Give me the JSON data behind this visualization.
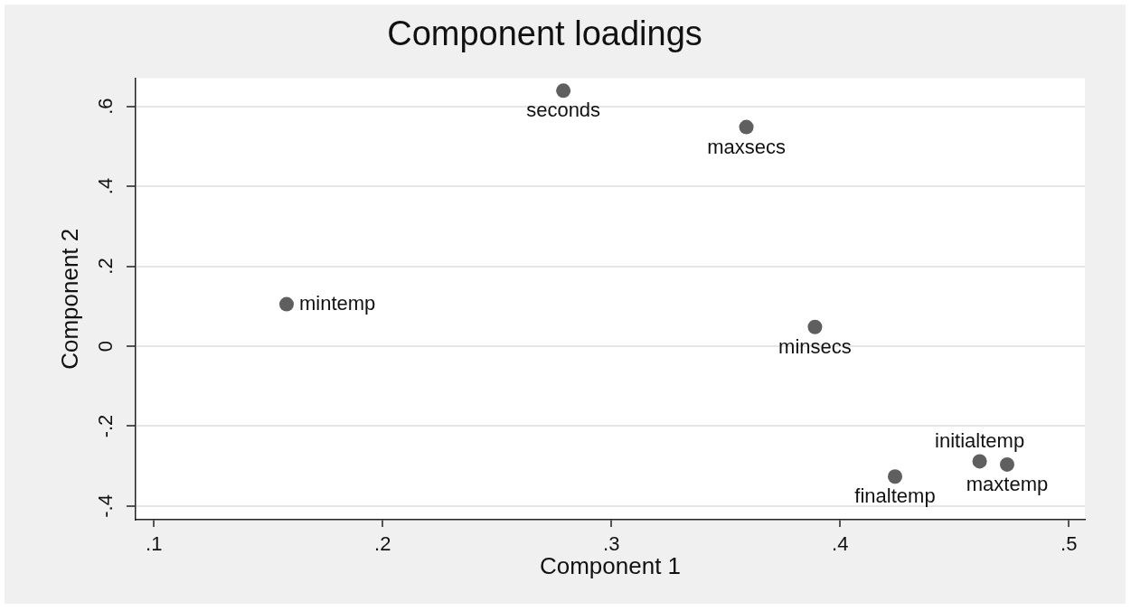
{
  "chart_data": {
    "type": "scatter",
    "title": "Component loadings",
    "xlabel": "Component 1",
    "ylabel": "Component 2",
    "x": [
      0.279,
      0.359,
      0.158,
      0.389,
      0.424,
      0.461,
      0.473
    ],
    "values": [
      0.639,
      0.548,
      0.105,
      0.048,
      -0.326,
      -0.288,
      -0.296
    ],
    "value_labels": [
      "seconds",
      "maxsecs",
      "mintemp",
      "minsecs",
      "finaltemp",
      "initialtemp",
      "maxtemp"
    ],
    "color": "#5f5f5f",
    "marker": "circle",
    "xlim": [
      0.092,
      0.507
    ],
    "xticks": [
      {
        "value": 0.1,
        "label": ".1"
      },
      {
        "value": 0.2,
        "label": ".2"
      },
      {
        "value": 0.3,
        "label": ".3"
      },
      {
        "value": 0.4,
        "label": ".4"
      },
      {
        "value": 0.5,
        "label": ".5"
      }
    ],
    "ylim": [
      -0.434,
      0.67
    ],
    "yticks": [
      {
        "value": -0.4,
        "label": "-.4"
      },
      {
        "value": -0.2,
        "label": "-.2"
      },
      0,
      {
        "value": 0.2,
        "label": ".2"
      },
      {
        "value": 0.4,
        "label": ".4"
      },
      {
        "value": 0.6,
        "label": ".6"
      }
    ],
    "grid": "y"
  }
}
